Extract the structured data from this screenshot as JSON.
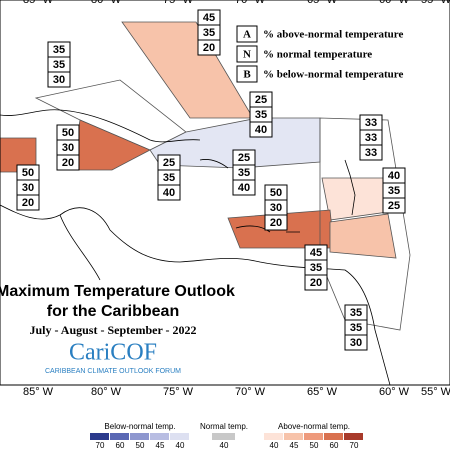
{
  "longitudes": [
    "85° W",
    "80° W",
    "75° W",
    "70° W",
    "65° W",
    "60° W",
    "55° W"
  ],
  "title": {
    "line1": "Maximum Temperature Outlook",
    "line2": "for the Caribbean",
    "period": "July - August - September - 2022",
    "logo": "CariCOF",
    "logo_sub": "CARIBBEAN CLIMATE OUTLOOK FORUM"
  },
  "key": [
    {
      "letter": "A",
      "text": "% above-normal temperature"
    },
    {
      "letter": "N",
      "text": "% normal temperature"
    },
    {
      "letter": "B",
      "text": "% below-normal temperature"
    }
  ],
  "forecasts": [
    {
      "above": 45,
      "normal": 35,
      "below": 20
    },
    {
      "above": 35,
      "normal": 35,
      "below": 30
    },
    {
      "above": 50,
      "normal": 30,
      "below": 20
    },
    {
      "above": 50,
      "normal": 30,
      "below": 20
    },
    {
      "above": 25,
      "normal": 35,
      "below": 40
    },
    {
      "above": 25,
      "normal": 35,
      "below": 40
    },
    {
      "above": 25,
      "normal": 35,
      "below": 40
    },
    {
      "above": 33,
      "normal": 33,
      "below": 33
    },
    {
      "above": 40,
      "normal": 35,
      "below": 25
    },
    {
      "above": 50,
      "normal": 30,
      "below": 20
    },
    {
      "above": 45,
      "normal": 35,
      "below": 20
    },
    {
      "above": 35,
      "normal": 35,
      "below": 30
    }
  ],
  "colorbar": {
    "below_label": "Below-normal temp.",
    "below_ticks": [
      70,
      60,
      50,
      45,
      40
    ],
    "normal_label": "Normal temp.",
    "normal_ticks": [
      40
    ],
    "above_label": "Above-normal temp.",
    "above_ticks": [
      40,
      45,
      50,
      60,
      70
    ]
  }
}
